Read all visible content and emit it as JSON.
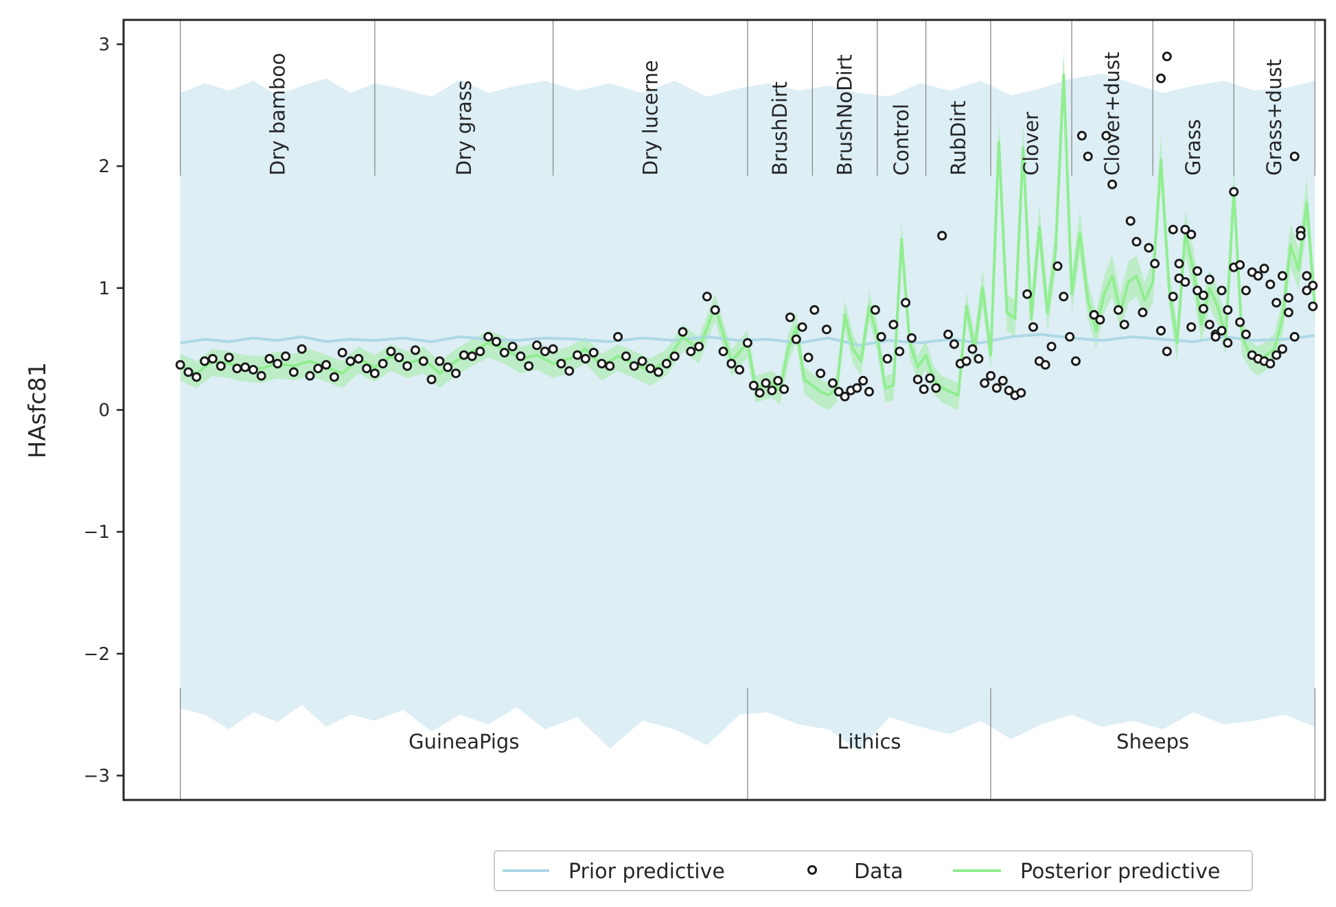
{
  "chart_data": {
    "type": "line",
    "title": "",
    "ylabel": "HAsfc81",
    "xlabel": "",
    "ylim": [
      -3.2,
      3.2
    ],
    "xlim": [
      -28,
      565
    ],
    "yticks": [
      -3,
      -2,
      -1,
      0,
      1,
      2,
      3
    ],
    "ytick_labels": [
      "−3",
      "−2",
      "−1",
      "0",
      "1",
      "2",
      "3"
    ],
    "grid": false,
    "legend_position": "bottom-right (below axes)",
    "colors": {
      "prior": "#add8e6",
      "prior_band": "#ddeef5",
      "posterior": "#90ee90",
      "posterior_band": "#b9ecc2",
      "data_edge": "#1a1a1a",
      "separator": "#808080",
      "frame": "#262626"
    },
    "treatments": [
      {
        "label": "Dry bamboo",
        "start": 0,
        "end": 96
      },
      {
        "label": "Dry grass",
        "start": 96,
        "end": 184
      },
      {
        "label": "Dry lucerne",
        "start": 184,
        "end": 280
      },
      {
        "label": "BrushDirt",
        "start": 280,
        "end": 312
      },
      {
        "label": "BrushNoDirt",
        "start": 312,
        "end": 344
      },
      {
        "label": "Control",
        "start": 344,
        "end": 368
      },
      {
        "label": "RubDirt",
        "start": 368,
        "end": 400
      },
      {
        "label": "Clover",
        "start": 400,
        "end": 440
      },
      {
        "label": "Clover+dust",
        "start": 440,
        "end": 480
      },
      {
        "label": "Grass",
        "start": 480,
        "end": 520
      },
      {
        "label": "Grass+dust",
        "start": 520,
        "end": 560
      }
    ],
    "groups": [
      {
        "label": "GuineaPigs",
        "start": 0,
        "end": 280
      },
      {
        "label": "Lithics",
        "start": 280,
        "end": 400
      },
      {
        "label": "Sheeps",
        "start": 400,
        "end": 560
      }
    ],
    "series": [
      {
        "name": "Prior predictive",
        "kind": "line+band",
        "x": [
          0,
          12,
          24,
          36,
          48,
          60,
          72,
          84,
          96,
          110,
          124,
          138,
          152,
          166,
          180,
          196,
          212,
          228,
          244,
          260,
          276,
          290,
          305,
          320,
          335,
          350,
          365,
          380,
          395,
          410,
          425,
          440,
          455,
          470,
          485,
          500,
          515,
          530,
          545,
          560
        ],
        "mean": [
          0.55,
          0.58,
          0.56,
          0.59,
          0.57,
          0.6,
          0.56,
          0.58,
          0.57,
          0.59,
          0.56,
          0.6,
          0.58,
          0.57,
          0.59,
          0.58,
          0.56,
          0.59,
          0.57,
          0.6,
          0.57,
          0.58,
          0.55,
          0.59,
          0.53,
          0.57,
          0.55,
          0.58,
          0.55,
          0.6,
          0.62,
          0.59,
          0.57,
          0.6,
          0.58,
          0.56,
          0.6,
          0.57,
          0.58,
          0.61
        ],
        "upper": [
          2.6,
          2.68,
          2.62,
          2.7,
          2.58,
          2.66,
          2.72,
          2.6,
          2.68,
          2.63,
          2.57,
          2.71,
          2.6,
          2.66,
          2.7,
          2.62,
          2.68,
          2.6,
          2.7,
          2.57,
          2.64,
          2.68,
          2.62,
          2.66,
          2.6,
          2.57,
          2.68,
          2.62,
          2.7,
          2.58,
          2.64,
          2.72,
          2.76,
          2.68,
          2.6,
          2.66,
          2.7,
          2.62,
          2.64,
          2.7
        ],
        "lower": [
          -2.45,
          -2.5,
          -2.62,
          -2.48,
          -2.56,
          -2.42,
          -2.6,
          -2.5,
          -2.55,
          -2.46,
          -2.64,
          -2.5,
          -2.58,
          -2.44,
          -2.62,
          -2.52,
          -2.78,
          -2.55,
          -2.62,
          -2.75,
          -2.5,
          -2.48,
          -2.58,
          -2.62,
          -2.8,
          -2.52,
          -2.6,
          -2.66,
          -2.55,
          -2.7,
          -2.58,
          -2.5,
          -2.6,
          -2.55,
          -2.62,
          -2.48,
          -2.58,
          -2.55,
          -2.5,
          -2.6
        ]
      },
      {
        "name": "Posterior predictive",
        "kind": "line+band",
        "x": [
          0,
          8,
          16,
          24,
          32,
          40,
          48,
          56,
          64,
          72,
          80,
          88,
          96,
          104,
          112,
          120,
          128,
          136,
          144,
          152,
          160,
          168,
          176,
          184,
          192,
          200,
          208,
          216,
          224,
          232,
          240,
          248,
          256,
          264,
          272,
          280,
          284,
          288,
          292,
          296,
          300,
          304,
          308,
          312,
          316,
          320,
          324,
          328,
          332,
          336,
          340,
          344,
          348,
          352,
          356,
          360,
          364,
          368,
          372,
          376,
          380,
          384,
          388,
          392,
          396,
          400,
          404,
          408,
          412,
          416,
          420,
          424,
          428,
          432,
          436,
          440,
          444,
          448,
          452,
          456,
          460,
          464,
          468,
          472,
          476,
          480,
          484,
          488,
          492,
          496,
          500,
          504,
          508,
          512,
          516,
          520,
          524,
          528,
          532,
          536,
          540,
          544,
          548,
          552,
          556,
          560
        ],
        "mean": [
          0.36,
          0.3,
          0.4,
          0.38,
          0.35,
          0.34,
          0.38,
          0.36,
          0.4,
          0.35,
          0.3,
          0.42,
          0.35,
          0.44,
          0.38,
          0.42,
          0.3,
          0.4,
          0.48,
          0.55,
          0.5,
          0.42,
          0.45,
          0.38,
          0.42,
          0.5,
          0.36,
          0.44,
          0.38,
          0.32,
          0.4,
          0.6,
          0.5,
          0.85,
          0.4,
          0.55,
          0.18,
          0.2,
          0.22,
          0.16,
          0.5,
          0.68,
          0.25,
          0.2,
          0.15,
          0.12,
          0.18,
          0.78,
          0.5,
          0.4,
          0.85,
          0.6,
          0.18,
          0.2,
          1.4,
          0.55,
          0.35,
          0.45,
          0.25,
          0.18,
          0.15,
          0.12,
          0.85,
          0.5,
          1.0,
          0.45,
          2.2,
          0.8,
          0.75,
          2.15,
          0.75,
          1.5,
          0.8,
          1.3,
          2.75,
          0.95,
          1.45,
          0.9,
          0.65,
          0.95,
          1.1,
          0.8,
          1.05,
          1.1,
          0.9,
          1.05,
          2.05,
          1.0,
          0.55,
          1.45,
          1.15,
          0.7,
          1.0,
          0.85,
          0.6,
          1.8,
          0.6,
          0.45,
          0.4,
          0.45,
          0.5,
          0.75,
          1.35,
          1.15,
          1.7,
          0.85
        ],
        "upper": [
          0.46,
          0.4,
          0.5,
          0.48,
          0.45,
          0.44,
          0.48,
          0.46,
          0.5,
          0.45,
          0.4,
          0.52,
          0.45,
          0.54,
          0.48,
          0.52,
          0.4,
          0.5,
          0.58,
          0.65,
          0.6,
          0.52,
          0.55,
          0.48,
          0.52,
          0.6,
          0.46,
          0.54,
          0.48,
          0.42,
          0.5,
          0.7,
          0.6,
          0.95,
          0.5,
          0.65,
          0.28,
          0.3,
          0.32,
          0.26,
          0.62,
          0.8,
          0.35,
          0.3,
          0.25,
          0.22,
          0.28,
          0.9,
          0.62,
          0.5,
          0.97,
          0.72,
          0.28,
          0.3,
          1.55,
          0.67,
          0.45,
          0.57,
          0.35,
          0.28,
          0.25,
          0.22,
          0.97,
          0.62,
          1.15,
          0.57,
          2.4,
          0.95,
          0.9,
          2.35,
          0.9,
          1.68,
          0.95,
          1.48,
          2.95,
          1.1,
          1.63,
          1.05,
          0.8,
          1.1,
          1.27,
          0.95,
          1.22,
          1.27,
          1.05,
          1.22,
          2.25,
          1.15,
          0.7,
          1.63,
          1.32,
          0.85,
          1.15,
          1.0,
          0.75,
          2.0,
          0.75,
          0.57,
          0.52,
          0.57,
          0.62,
          0.9,
          1.53,
          1.32,
          1.9,
          1.0
        ],
        "lower": [
          0.24,
          0.18,
          0.28,
          0.26,
          0.23,
          0.22,
          0.26,
          0.24,
          0.28,
          0.23,
          0.18,
          0.3,
          0.23,
          0.32,
          0.26,
          0.3,
          0.18,
          0.28,
          0.36,
          0.43,
          0.38,
          0.3,
          0.33,
          0.26,
          0.3,
          0.38,
          0.24,
          0.32,
          0.26,
          0.2,
          0.28,
          0.48,
          0.38,
          0.73,
          0.28,
          0.43,
          0.06,
          0.08,
          0.1,
          0.04,
          0.38,
          0.56,
          0.13,
          0.08,
          0.03,
          0.0,
          0.06,
          0.66,
          0.38,
          0.28,
          0.73,
          0.48,
          0.06,
          0.08,
          1.25,
          0.43,
          0.23,
          0.33,
          0.13,
          0.06,
          0.03,
          0.0,
          0.73,
          0.38,
          0.85,
          0.33,
          2.0,
          0.65,
          0.6,
          1.95,
          0.6,
          1.32,
          0.65,
          1.12,
          2.55,
          0.8,
          1.27,
          0.75,
          0.5,
          0.8,
          0.93,
          0.65,
          0.88,
          0.93,
          0.75,
          0.88,
          1.85,
          0.85,
          0.4,
          1.27,
          0.98,
          0.55,
          0.85,
          0.7,
          0.45,
          1.6,
          0.45,
          0.33,
          0.28,
          0.33,
          0.38,
          0.6,
          1.17,
          0.98,
          1.5,
          0.7
        ]
      },
      {
        "name": "Data",
        "kind": "scatter",
        "x": [
          0,
          4,
          8,
          12,
          16,
          20,
          24,
          28,
          32,
          36,
          40,
          44,
          48,
          52,
          56,
          60,
          64,
          68,
          72,
          76,
          80,
          84,
          88,
          92,
          96,
          100,
          104,
          108,
          112,
          116,
          120,
          124,
          128,
          132,
          136,
          140,
          144,
          148,
          152,
          156,
          160,
          164,
          168,
          172,
          176,
          180,
          184,
          188,
          192,
          196,
          200,
          204,
          208,
          212,
          216,
          220,
          224,
          228,
          232,
          236,
          240,
          244,
          248,
          252,
          256,
          260,
          264,
          268,
          272,
          276,
          280,
          283,
          286,
          289,
          292,
          295,
          298,
          301,
          304,
          307,
          310,
          313,
          316,
          319,
          322,
          325,
          328,
          331,
          334,
          337,
          340,
          343,
          346,
          349,
          352,
          355,
          358,
          361,
          364,
          367,
          370,
          373,
          376,
          379,
          382,
          385,
          388,
          391,
          394,
          397,
          400,
          403,
          406,
          409,
          412,
          415,
          418,
          421,
          424,
          427,
          430,
          433,
          436,
          439,
          442,
          445,
          448,
          451,
          454,
          457,
          460,
          463,
          466,
          469,
          472,
          475,
          478,
          481,
          484,
          487,
          490,
          493,
          496,
          499,
          502,
          505,
          508,
          511,
          514,
          517,
          520,
          523,
          526,
          529,
          532,
          535,
          538,
          541,
          544,
          547,
          550,
          553,
          556,
          559
        ],
        "y": [
          0.37,
          0.31,
          0.27,
          0.4,
          0.42,
          0.36,
          0.43,
          0.34,
          0.35,
          0.33,
          0.28,
          0.42,
          0.38,
          0.44,
          0.31,
          0.5,
          0.28,
          0.34,
          0.37,
          0.27,
          0.47,
          0.4,
          0.42,
          0.34,
          0.3,
          0.38,
          0.48,
          0.43,
          0.36,
          0.49,
          0.4,
          0.25,
          0.4,
          0.35,
          0.3,
          0.45,
          0.44,
          0.48,
          0.6,
          0.56,
          0.47,
          0.52,
          0.44,
          0.36,
          0.53,
          0.48,
          0.5,
          0.38,
          0.32,
          0.45,
          0.42,
          0.47,
          0.38,
          0.36,
          0.6,
          0.44,
          0.36,
          0.4,
          0.34,
          0.31,
          0.38,
          0.44,
          0.64,
          0.48,
          0.52,
          0.93,
          0.82,
          0.48,
          0.38,
          0.33,
          0.55,
          0.2,
          0.14,
          0.22,
          0.16,
          0.24,
          0.17,
          0.76,
          0.58,
          0.68,
          0.43,
          0.82,
          0.3,
          0.66,
          0.22,
          0.15,
          0.11,
          0.16,
          0.18,
          0.24,
          0.15,
          0.82,
          0.6,
          0.42,
          0.7,
          0.48,
          0.88,
          0.59,
          0.25,
          0.17,
          0.26,
          0.18,
          1.43,
          0.62,
          0.54,
          0.38,
          0.4,
          0.5,
          0.42,
          0.22,
          0.28,
          0.18,
          0.24,
          0.16,
          0.12,
          0.14,
          0.95,
          0.68,
          0.4,
          0.37,
          0.52,
          1.18,
          0.93,
          0.6,
          0.4,
          2.25,
          2.08,
          0.78,
          0.74,
          2.25,
          1.85,
          0.82,
          0.7,
          1.55,
          1.38,
          0.8,
          1.33,
          1.2,
          2.72,
          2.9,
          0.93,
          1.08,
          1.48,
          1.44,
          0.98,
          0.94,
          0.7,
          0.62,
          0.98,
          0.82,
          1.17,
          0.72,
          0.98,
          1.13,
          1.1,
          1.16,
          1.03,
          0.88,
          1.1,
          0.92,
          2.08,
          1.47,
          0.98,
          1.02
        ],
        "x_extra": [
          484,
          487,
          490,
          493,
          496,
          499,
          502,
          505,
          508,
          511,
          514,
          517,
          520,
          523,
          526,
          529,
          532,
          535,
          538,
          541,
          544,
          547,
          550,
          553,
          556,
          559
        ],
        "y_extra": [
          0.65,
          0.48,
          1.48,
          1.2,
          1.05,
          0.68,
          1.14,
          0.83,
          1.07,
          0.6,
          0.65,
          0.55,
          1.79,
          1.19,
          0.62,
          0.45,
          0.42,
          0.4,
          0.38,
          0.45,
          0.5,
          0.8,
          0.6,
          1.43,
          1.1,
          0.85
        ]
      }
    ]
  },
  "legend": {
    "items": [
      {
        "label": "Prior predictive",
        "symbol": "line",
        "color": "#add8e6"
      },
      {
        "label": "Data",
        "symbol": "circle",
        "color": "#1a1a1a"
      },
      {
        "label": "Posterior predictive",
        "symbol": "line",
        "color": "#90ee90"
      }
    ]
  }
}
